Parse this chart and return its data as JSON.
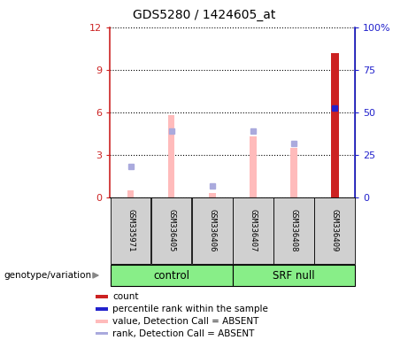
{
  "title": "GDS5280 / 1424605_at",
  "samples": [
    "GSM335971",
    "GSM336405",
    "GSM336406",
    "GSM336407",
    "GSM336408",
    "GSM336409"
  ],
  "bar_values_absent": [
    0.5,
    5.8,
    0.3,
    4.3,
    3.5,
    null
  ],
  "bar_values_count": [
    null,
    null,
    null,
    null,
    null,
    10.2
  ],
  "rank_absent_left": [
    2.2,
    4.7,
    0.8,
    4.7,
    3.8,
    null
  ],
  "percentile_rank_left": [
    null,
    null,
    null,
    null,
    null,
    6.3
  ],
  "ylim_left": [
    0,
    12
  ],
  "ylim_right": [
    0,
    100
  ],
  "yticks_left": [
    0,
    3,
    6,
    9,
    12
  ],
  "ytick_labels_left": [
    "0",
    "3",
    "6",
    "9",
    "12"
  ],
  "yticks_right": [
    0,
    25,
    50,
    75,
    100
  ],
  "ytick_labels_right": [
    "0",
    "25",
    "50",
    "75",
    "100%"
  ],
  "color_count": "#cc2222",
  "color_percentile": "#2222cc",
  "color_absent_value": "#ffbbbb",
  "color_absent_rank": "#aaaadd",
  "group_control_color": "#88ee88",
  "group_srf_color": "#88ee88",
  "bar_width": 0.3,
  "legend_items": [
    {
      "label": "count",
      "color": "#cc2222"
    },
    {
      "label": "percentile rank within the sample",
      "color": "#2222cc"
    },
    {
      "label": "value, Detection Call = ABSENT",
      "color": "#ffbbbb"
    },
    {
      "label": "rank, Detection Call = ABSENT",
      "color": "#aaaadd"
    }
  ],
  "control_indices": [
    0,
    1,
    2
  ],
  "srf_indices": [
    3,
    4,
    5
  ]
}
